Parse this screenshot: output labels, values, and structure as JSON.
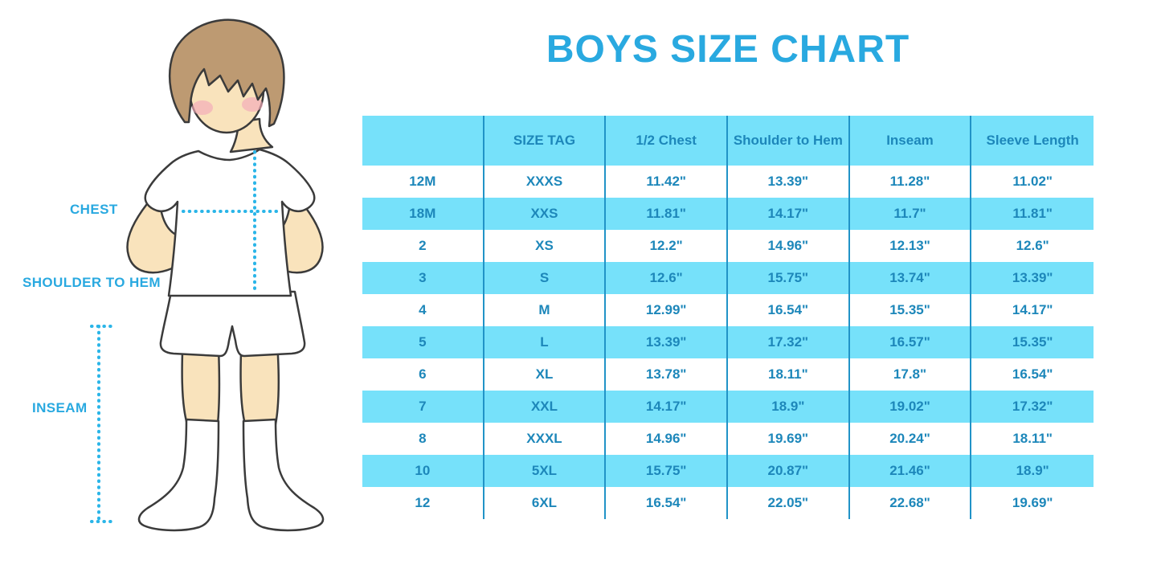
{
  "page_title": "BOYS SIZE CHART",
  "figure_labels": {
    "chest": "CHEST",
    "shoulder_to_hem": "SHOULDER TO HEM",
    "inseam": "INSEAM"
  },
  "colors": {
    "accent": "#29a9e0",
    "table_fill": "#76e1fa",
    "table_text": "#1d87ba",
    "table_line": "#2193c7",
    "dotted_line": "#2ab5e8",
    "skin": "#f9e3bc",
    "hair": "#bd9a72",
    "cheeks": "#f2a9b8",
    "outline": "#3b3b3b",
    "garment_white": "#ffffff"
  },
  "chart_data": {
    "type": "table",
    "title": "BOYS SIZE CHART",
    "units": "inches",
    "striping": "header and alternate rows light blue, others white",
    "columns": [
      "",
      "SIZE TAG",
      "1/2 Chest",
      "Shoulder to Hem",
      "Inseam",
      "Sleeve Length"
    ],
    "rows": [
      [
        "12M",
        "XXXS",
        "11.42\"",
        "13.39\"",
        "11.28\"",
        "11.02\""
      ],
      [
        "18M",
        "XXS",
        "11.81\"",
        "14.17\"",
        "11.7\"",
        "11.81\""
      ],
      [
        "2",
        "XS",
        "12.2\"",
        "14.96\"",
        "12.13\"",
        "12.6\""
      ],
      [
        "3",
        "S",
        "12.6\"",
        "15.75\"",
        "13.74\"",
        "13.39\""
      ],
      [
        "4",
        "M",
        "12.99\"",
        "16.54\"",
        "15.35\"",
        "14.17\""
      ],
      [
        "5",
        "L",
        "13.39\"",
        "17.32\"",
        "16.57\"",
        "15.35\""
      ],
      [
        "6",
        "XL",
        "13.78\"",
        "18.11\"",
        "17.8\"",
        "16.54\""
      ],
      [
        "7",
        "XXL",
        "14.17\"",
        "18.9\"",
        "19.02\"",
        "17.32\""
      ],
      [
        "8",
        "XXXL",
        "14.96\"",
        "19.69\"",
        "20.24\"",
        "18.11\""
      ],
      [
        "10",
        "5XL",
        "15.75\"",
        "20.87\"",
        "21.46\"",
        "18.9\""
      ],
      [
        "12",
        "6XL",
        "16.54\"",
        "22.05\"",
        "22.68\"",
        "19.69\""
      ]
    ]
  }
}
